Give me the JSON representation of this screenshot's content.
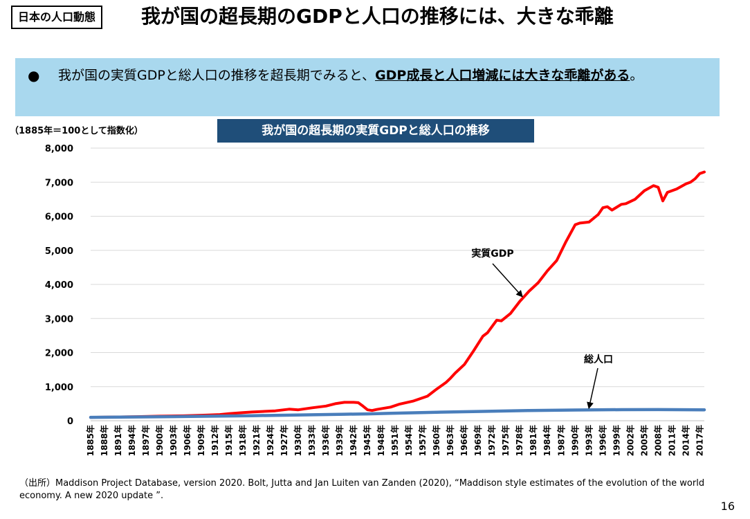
{
  "header": {
    "tag": "日本の人口動態",
    "title": "我が国の超長期のGDPと人口の推移には、大きな乖離"
  },
  "banner": {
    "bullet": "●",
    "text_before": "我が国の実質GDPと総人口の推移を超長期でみると、",
    "text_bold": "GDP成長と人口増減には大きな乖離がある",
    "text_after": "。"
  },
  "index_note": "（1885年＝100として指数化）",
  "chart_title": "我が国の超長期の実質GDPと総人口の推移",
  "chart_data": {
    "type": "line",
    "x_start": 1885,
    "x_end": 2018,
    "x_tick_labels": [
      "1885年",
      "1888年",
      "1891年",
      "1894年",
      "1897年",
      "1900年",
      "1903年",
      "1906年",
      "1909年",
      "1912年",
      "1915年",
      "1918年",
      "1921年",
      "1924年",
      "1927年",
      "1930年",
      "1933年",
      "1936年",
      "1939年",
      "1942年",
      "1945年",
      "1948年",
      "1951年",
      "1954年",
      "1957年",
      "1960年",
      "1963年",
      "1966年",
      "1969年",
      "1972年",
      "1975年",
      "1978年",
      "1981年",
      "1984年",
      "1987年",
      "1990年",
      "1993年",
      "1996年",
      "1999年",
      "2002年",
      "2005年",
      "2008年",
      "2011年",
      "2014年",
      "2017年"
    ],
    "y_tick_labels": [
      "0",
      "1,000",
      "2,000",
      "3,000",
      "4,000",
      "5,000",
      "6,000",
      "7,000",
      "8,000"
    ],
    "ylim": [
      0,
      8000
    ],
    "grid": true,
    "series": [
      {
        "name": "実質GDP",
        "color": "#ff0000",
        "points": [
          [
            1885,
            100
          ],
          [
            1890,
            110
          ],
          [
            1895,
            120
          ],
          [
            1900,
            135
          ],
          [
            1905,
            145
          ],
          [
            1910,
            165
          ],
          [
            1913,
            180
          ],
          [
            1915,
            210
          ],
          [
            1918,
            240
          ],
          [
            1920,
            255
          ],
          [
            1925,
            290
          ],
          [
            1928,
            340
          ],
          [
            1930,
            320
          ],
          [
            1933,
            380
          ],
          [
            1936,
            430
          ],
          [
            1938,
            500
          ],
          [
            1940,
            540
          ],
          [
            1942,
            540
          ],
          [
            1943,
            530
          ],
          [
            1944,
            430
          ],
          [
            1945,
            320
          ],
          [
            1946,
            300
          ],
          [
            1947,
            330
          ],
          [
            1950,
            400
          ],
          [
            1952,
            490
          ],
          [
            1955,
            580
          ],
          [
            1958,
            720
          ],
          [
            1960,
            930
          ],
          [
            1962,
            1120
          ],
          [
            1963,
            1250
          ],
          [
            1964,
            1400
          ],
          [
            1966,
            1650
          ],
          [
            1968,
            2050
          ],
          [
            1970,
            2480
          ],
          [
            1971,
            2580
          ],
          [
            1973,
            2950
          ],
          [
            1974,
            2930
          ],
          [
            1976,
            3150
          ],
          [
            1978,
            3500
          ],
          [
            1980,
            3800
          ],
          [
            1982,
            4050
          ],
          [
            1984,
            4400
          ],
          [
            1986,
            4700
          ],
          [
            1988,
            5250
          ],
          [
            1990,
            5750
          ],
          [
            1991,
            5800
          ],
          [
            1993,
            5830
          ],
          [
            1995,
            6050
          ],
          [
            1996,
            6250
          ],
          [
            1997,
            6280
          ],
          [
            1998,
            6180
          ],
          [
            2000,
            6350
          ],
          [
            2001,
            6370
          ],
          [
            2003,
            6500
          ],
          [
            2005,
            6750
          ],
          [
            2007,
            6900
          ],
          [
            2008,
            6850
          ],
          [
            2009,
            6450
          ],
          [
            2010,
            6700
          ],
          [
            2012,
            6800
          ],
          [
            2014,
            6950
          ],
          [
            2015,
            7000
          ],
          [
            2016,
            7100
          ],
          [
            2017,
            7250
          ],
          [
            2018,
            7300
          ]
        ]
      },
      {
        "name": "総人口",
        "color": "#4a7ebb",
        "points": [
          [
            1885,
            100
          ],
          [
            1900,
            115
          ],
          [
            1920,
            148
          ],
          [
            1940,
            190
          ],
          [
            1945,
            200
          ],
          [
            1950,
            220
          ],
          [
            1960,
            250
          ],
          [
            1970,
            275
          ],
          [
            1980,
            300
          ],
          [
            1990,
            315
          ],
          [
            2000,
            325
          ],
          [
            2008,
            326
          ],
          [
            2018,
            320
          ]
        ]
      }
    ],
    "annotations": [
      {
        "text": "実質GDP",
        "series": "実質GDP"
      },
      {
        "text": "総人口",
        "series": "総人口"
      }
    ]
  },
  "source": "（出所）Maddison Project Database, version 2020. Bolt, Jutta and Jan Luiten van Zanden (2020), “Maddison style estimates of the evolution of the world economy. A new 2020 update ”.",
  "page_number": "16"
}
